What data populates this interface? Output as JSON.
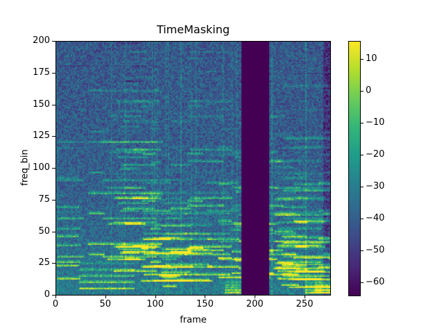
{
  "chart_data": {
    "type": "heatmap",
    "title": "TimeMasking",
    "xlabel": "frame",
    "ylabel": "freq_bin",
    "xlim": [
      0,
      275
    ],
    "ylim": [
      0,
      200
    ],
    "xticks": [
      "0",
      "50",
      "100",
      "150",
      "200",
      "250"
    ],
    "yticks": [
      "0",
      "25",
      "50",
      "75",
      "100",
      "125",
      "150",
      "175",
      "200"
    ],
    "colormap": "viridis",
    "colorbar": {
      "range": [
        -64,
        15.6
      ],
      "ticks": [
        "10",
        "0",
        "−10",
        "−20",
        "−30",
        "−40",
        "−50",
        "−60"
      ]
    },
    "masked_frames": [
      186,
      213
    ],
    "masked_value": -64
  }
}
